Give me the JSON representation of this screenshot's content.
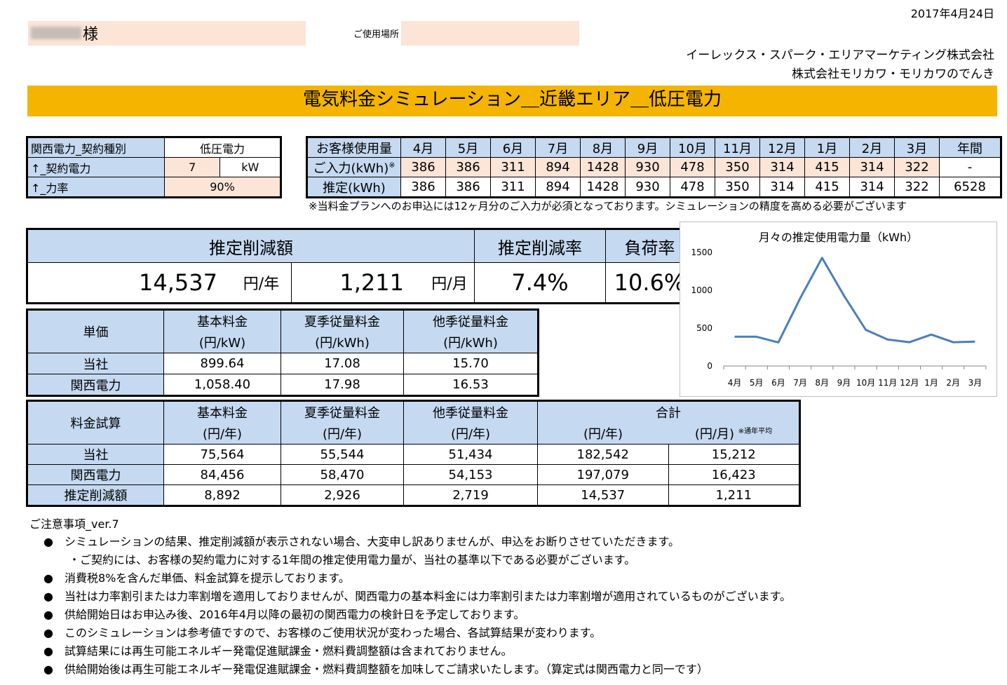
{
  "header": {
    "date": "2017年4月24日",
    "customer_suffix": "様",
    "place_label": "ご使用場所",
    "company_line1": "イーレックス・スパーク・エリアマーケティング株式会社",
    "company_line2": "株式会社モリカワ・モリカワのでんき",
    "title": "電気料金シミュレーション＿近畿エリア＿低圧電力"
  },
  "contract": {
    "type_label": "関西電力_契約種別",
    "type_value": "低圧電力",
    "power_label": "↑_契約電力",
    "power_value": "7",
    "power_unit": "kW",
    "factor_label": "↑_力率",
    "factor_value": "90%"
  },
  "usage": {
    "header_label": "お客様使用量",
    "months": [
      "4月",
      "5月",
      "6月",
      "7月",
      "8月",
      "9月",
      "10月",
      "11月",
      "12月",
      "1月",
      "2月",
      "3月"
    ],
    "annual_label": "年間",
    "input_label": "ご入力(kWh)",
    "input_sup": "※",
    "input_values": [
      "386",
      "386",
      "311",
      "894",
      "1428",
      "930",
      "478",
      "350",
      "314",
      "415",
      "314",
      "322"
    ],
    "input_annual": "-",
    "est_label": "推定(kWh)",
    "est_values": [
      "386",
      "386",
      "311",
      "894",
      "1428",
      "930",
      "478",
      "350",
      "314",
      "415",
      "314",
      "322"
    ],
    "est_annual": "6528",
    "note": "※当料金プランへのお申込には12ヶ月分のご入力が必須となっております。シミュレーションの精度を高める必要がございます"
  },
  "summary": {
    "saving_label": "推定削減額",
    "rate_label": "推定削減率",
    "load_label": "負荷率",
    "yearly_value": "14,537",
    "yearly_unit": "円/年",
    "monthly_value": "1,211",
    "monthly_unit": "円/月",
    "rate_value": "7.4%",
    "load_value": "10.6%"
  },
  "unit_price": {
    "corner": "単価",
    "cols": [
      {
        "name": "基本料金",
        "unit": "(円/kW)"
      },
      {
        "name": "夏季従量料金",
        "unit": "(円/kWh)"
      },
      {
        "name": "他季従量料金",
        "unit": "(円/kWh)"
      }
    ],
    "rows": [
      {
        "label": "当社",
        "values": [
          "899.64",
          "17.08",
          "15.70"
        ]
      },
      {
        "label": "関西電力",
        "values": [
          "1,058.40",
          "17.98",
          "16.53"
        ]
      }
    ]
  },
  "calc": {
    "corner": "料金試算",
    "cols": [
      {
        "name": "基本料金",
        "unit": "(円/年)"
      },
      {
        "name": "夏季従量料金",
        "unit": "(円/年)"
      },
      {
        "name": "他季従量料金",
        "unit": "(円/年)"
      }
    ],
    "total_label": "合計",
    "total_year_unit": "(円/年)",
    "total_month_unit": "(円/月)",
    "total_month_note": "※通年平均",
    "rows": [
      {
        "label": "当社",
        "values": [
          "75,564",
          "55,544",
          "51,434",
          "182,542",
          "15,212"
        ]
      },
      {
        "label": "関西電力",
        "values": [
          "84,456",
          "58,470",
          "54,153",
          "197,079",
          "16,423"
        ]
      },
      {
        "label": "推定削減額",
        "values": [
          "8,892",
          "2,926",
          "2,719",
          "14,537",
          "1,211"
        ]
      }
    ]
  },
  "chart_data": {
    "type": "line",
    "title": "月々の推定使用電力量（kWh）",
    "categories": [
      "4月",
      "5月",
      "6月",
      "7月",
      "8月",
      "9月",
      "10月",
      "11月",
      "12月",
      "1月",
      "2月",
      "3月"
    ],
    "values": [
      386,
      386,
      311,
      894,
      1428,
      930,
      478,
      350,
      314,
      415,
      314,
      322
    ],
    "y_ticks": [
      "0",
      "500",
      "1000",
      "1500"
    ],
    "ylim": [
      0,
      1500
    ],
    "grid": false,
    "legend": "none",
    "line_color": "#4a7ebb"
  },
  "notes": {
    "title": "ご注意事項_ver.7",
    "items": [
      {
        "bullet": "●",
        "text": "シミュレーションの結果、推定削減額が表示されない場合、大変申し訳ありませんが、申込をお断りさせていただきます。"
      },
      {
        "bullet": "",
        "text": "・ご契約には、お客様の契約電力に対する1年間の推定使用電力量が、当社の基準以下である必要がございます。"
      },
      {
        "bullet": "●",
        "text": "消費税8%を含んだ単価、料金試算を提示しております。"
      },
      {
        "bullet": "●",
        "text": "当社は力率割引または力率割増を適用しておりませんが、関西電力の基本料金には力率割引または力率割増が適用されているものがございます。"
      },
      {
        "bullet": "●",
        "text": "供給開始日はお申込み後、2016年4月以降の最初の関西電力の検針日を予定しております。"
      },
      {
        "bullet": "●",
        "text": "このシミュレーションは参考値ですので、お客様のご使用状況が変わった場合、各試算結果が変わります。"
      },
      {
        "bullet": "●",
        "text": "試算結果には再生可能エネルギー発電促進賦課金・燃料費調整額は含まれておりません。"
      },
      {
        "bullet": "●",
        "text": "供給開始後は再生可能エネルギー発電促進賦課金・燃料費調整額を加味してご請求いたします。（算定式は関西電力と同一です）"
      }
    ]
  }
}
